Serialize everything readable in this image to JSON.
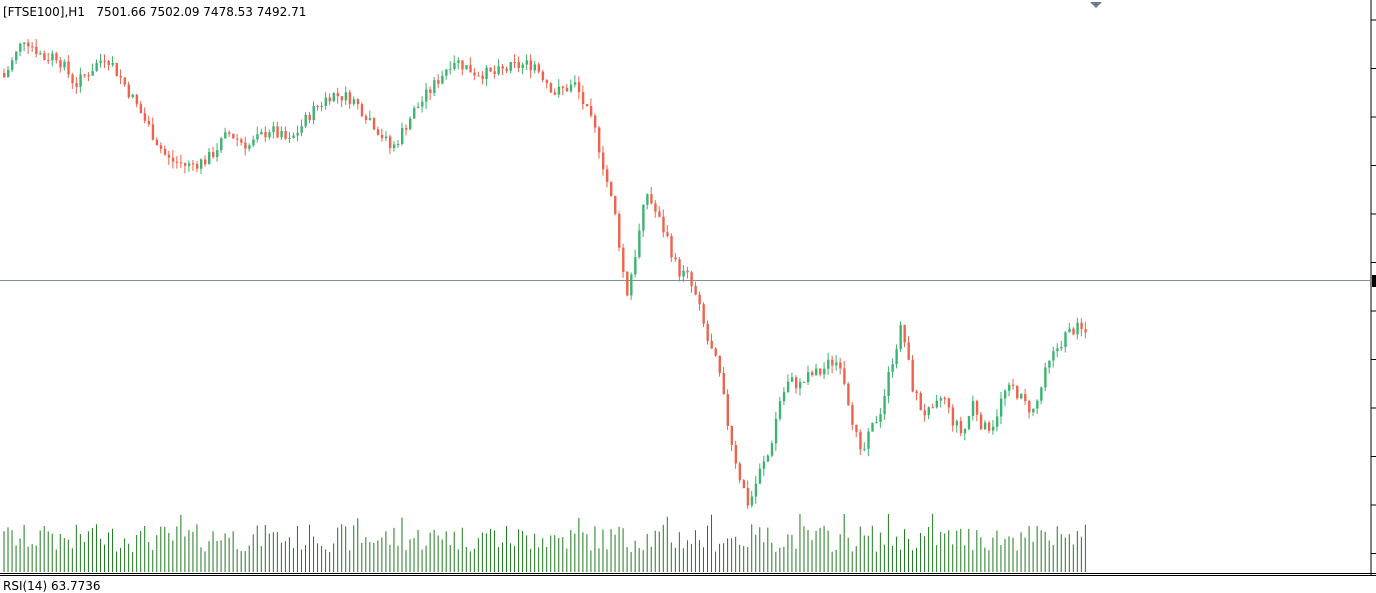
{
  "header": {
    "symbol": "[FTSE100],H1",
    "ohlc": "7501.66 7502.09 7478.53 7492.71"
  },
  "indicator": {
    "label": "RSI(14) 63.7736"
  },
  "colors": {
    "bull": "#3cb371",
    "bear": "#f0624d",
    "volume": "#1e7a1e",
    "current_line": "#7f9098",
    "axis": "#000000",
    "marker": "#6b7b8c"
  },
  "chart_data": {
    "type": "candlestick",
    "timeframe": "H1",
    "symbol": "FTSE100",
    "last_bar": {
      "open": 7501.66,
      "high": 7502.09,
      "low": 7478.53,
      "close": 7492.71
    },
    "current_price": 7492.71,
    "close_path": [
      [
        0,
        7688
      ],
      [
        4,
        7718
      ],
      [
        8,
        7702
      ],
      [
        10,
        7706
      ],
      [
        14,
        7682
      ],
      [
        20,
        7705
      ],
      [
        24,
        7680
      ],
      [
        28,
        7652
      ],
      [
        32,
        7625
      ],
      [
        36,
        7620
      ],
      [
        40,
        7625
      ],
      [
        44,
        7645
      ],
      [
        48,
        7635
      ],
      [
        52,
        7648
      ],
      [
        56,
        7638
      ],
      [
        60,
        7660
      ],
      [
        64,
        7675
      ],
      [
        68,
        7672
      ],
      [
        72,
        7655
      ],
      [
        76,
        7632
      ],
      [
        80,
        7660
      ],
      [
        84,
        7680
      ],
      [
        88,
        7702
      ],
      [
        92,
        7692
      ],
      [
        96,
        7690
      ],
      [
        100,
        7696
      ],
      [
        104,
        7698
      ],
      [
        108,
        7676
      ],
      [
        112,
        7682
      ],
      [
        116,
        7645
      ],
      [
        120,
        7578
      ],
      [
        122,
        7520
      ],
      [
        124,
        7558
      ],
      [
        126,
        7600
      ],
      [
        128,
        7582
      ],
      [
        130,
        7565
      ],
      [
        132,
        7540
      ],
      [
        134,
        7535
      ],
      [
        136,
        7515
      ],
      [
        138,
        7485
      ],
      [
        140,
        7465
      ],
      [
        142,
        7420
      ],
      [
        144,
        7385
      ],
      [
        146,
        7360
      ],
      [
        148,
        7385
      ],
      [
        150,
        7400
      ],
      [
        152,
        7440
      ],
      [
        154,
        7456
      ],
      [
        156,
        7452
      ],
      [
        158,
        7460
      ],
      [
        160,
        7462
      ],
      [
        162,
        7470
      ],
      [
        164,
        7470
      ],
      [
        166,
        7432
      ],
      [
        168,
        7396
      ],
      [
        170,
        7418
      ],
      [
        172,
        7435
      ],
      [
        174,
        7470
      ],
      [
        176,
        7498
      ],
      [
        178,
        7452
      ],
      [
        180,
        7432
      ],
      [
        182,
        7430
      ],
      [
        184,
        7445
      ],
      [
        186,
        7425
      ],
      [
        188,
        7414
      ],
      [
        190,
        7440
      ],
      [
        192,
        7418
      ],
      [
        194,
        7424
      ],
      [
        196,
        7446
      ],
      [
        198,
        7450
      ],
      [
        200,
        7438
      ],
      [
        202,
        7432
      ],
      [
        204,
        7460
      ],
      [
        206,
        7478
      ],
      [
        208,
        7490
      ],
      [
        210,
        7496
      ],
      [
        212,
        7492
      ]
    ],
    "volume_range": [
      2,
      14
    ],
    "price_range": [
      7330,
      7730
    ]
  }
}
